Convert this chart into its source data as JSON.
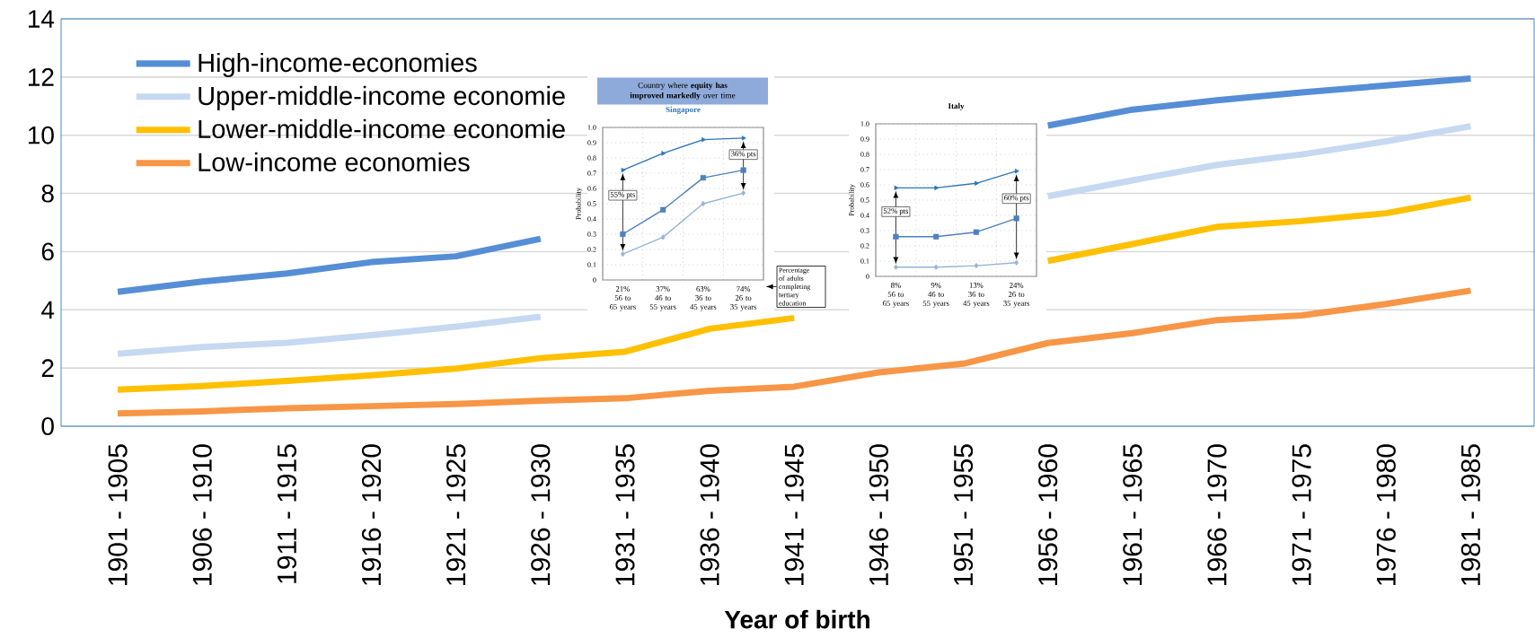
{
  "chart_data": [
    {
      "type": "line",
      "xlabel": "Year of birth",
      "categories": [
        "1901 - 1905",
        "1906 - 1910",
        "1911 - 1915",
        "1916 - 1920",
        "1921 - 1925",
        "1926 - 1930",
        "1931 - 1935",
        "1936 - 1940",
        "1941 - 1945",
        "1946 - 1950",
        "1951 - 1955",
        "1956 - 1960",
        "1961 - 1965",
        "1966 - 1970",
        "1971 - 1975",
        "1976 - 1980",
        "1981 - 1985"
      ],
      "ylim": [
        0,
        14
      ],
      "yticks": [
        0,
        2,
        4,
        6,
        8,
        10,
        12,
        14
      ],
      "grid": "y",
      "legend": "top left",
      "series": [
        {
          "name": "High-income-economies",
          "color": "#558ed5",
          "values": [
            4.62,
            4.97,
            5.25,
            5.64,
            5.84,
            6.44,
            null,
            null,
            null,
            null,
            null,
            10.33,
            10.88,
            11.2,
            11.47,
            11.71,
            11.95
          ]
        },
        {
          "name": "Upper-middle-income economie",
          "color": "#c6d9f1",
          "values": [
            2.49,
            2.72,
            2.87,
            3.13,
            3.42,
            3.76,
            null,
            null,
            null,
            null,
            null,
            7.9,
            8.45,
            8.98,
            9.34,
            9.79,
            10.31
          ]
        },
        {
          "name": "Lower-middle-income economie",
          "color": "#ffc000",
          "values": [
            1.26,
            1.38,
            1.56,
            1.75,
            1.98,
            2.34,
            2.56,
            3.35,
            3.72,
            null,
            null,
            5.68,
            6.26,
            6.85,
            7.05,
            7.32,
            7.86
          ]
        },
        {
          "name": "Low-income economies",
          "color": "#f79646",
          "values": [
            0.44,
            0.51,
            0.62,
            0.69,
            0.76,
            0.88,
            0.96,
            1.22,
            1.36,
            1.85,
            2.15,
            2.86,
            3.2,
            3.65,
            3.81,
            4.2,
            4.66
          ]
        }
      ]
    },
    {
      "type": "line",
      "title": "Singapore",
      "ylabel": "Probability",
      "categories": [
        "21%\n56 to\n65 years",
        "37%\n46 to\n55 years",
        "63%\n36 to\n45 years",
        "74%\n26 to\n35 years"
      ],
      "ylim": [
        0,
        1
      ],
      "yticks": [
        0,
        0.1,
        0.2,
        0.3,
        0.4,
        0.5,
        0.6,
        0.7,
        0.8,
        0.9,
        {
          "value": 1,
          "label": "1.0"
        }
      ],
      "grid": true,
      "annotations": [
        "Country where **equity has improved markedly** over time",
        "55% pts",
        "36% pts",
        "Percentage of adults completing tertiary education"
      ],
      "series": [
        {
          "color": "#2e75b6",
          "marker": "triangle",
          "values": [
            0.72,
            0.83,
            0.92,
            0.93
          ]
        },
        {
          "color": "#4f81bd",
          "marker": "square",
          "values": [
            0.3,
            0.46,
            0.67,
            0.72
          ]
        },
        {
          "color": "#95b3d7",
          "marker": "diamond",
          "values": [
            0.17,
            0.28,
            0.5,
            0.57
          ]
        }
      ]
    },
    {
      "type": "line",
      "title": "Italy",
      "ylabel": "Probability",
      "categories": [
        "8%\n56 to\n65 years",
        "9%\n46 to\n55 years",
        "13%\n36 to\n45 years",
        "24%\n26 to\n35 years"
      ],
      "ylim": [
        0,
        1
      ],
      "yticks": [
        0,
        0.1,
        0.2,
        0.3,
        0.4,
        0.5,
        0.6,
        0.7,
        0.8,
        0.9,
        {
          "value": 1,
          "label": "1.0"
        }
      ],
      "grid": true,
      "annotations": [
        "52% pts",
        "60% pts"
      ],
      "series": [
        {
          "color": "#2e75b6",
          "marker": "triangle",
          "values": [
            0.58,
            0.58,
            0.61,
            0.69
          ]
        },
        {
          "color": "#4f81bd",
          "marker": "square",
          "values": [
            0.26,
            0.26,
            0.29,
            0.38
          ]
        },
        {
          "color": "#95b3d7",
          "marker": "diamond",
          "values": [
            0.06,
            0.06,
            0.07,
            0.09
          ]
        }
      ]
    }
  ]
}
